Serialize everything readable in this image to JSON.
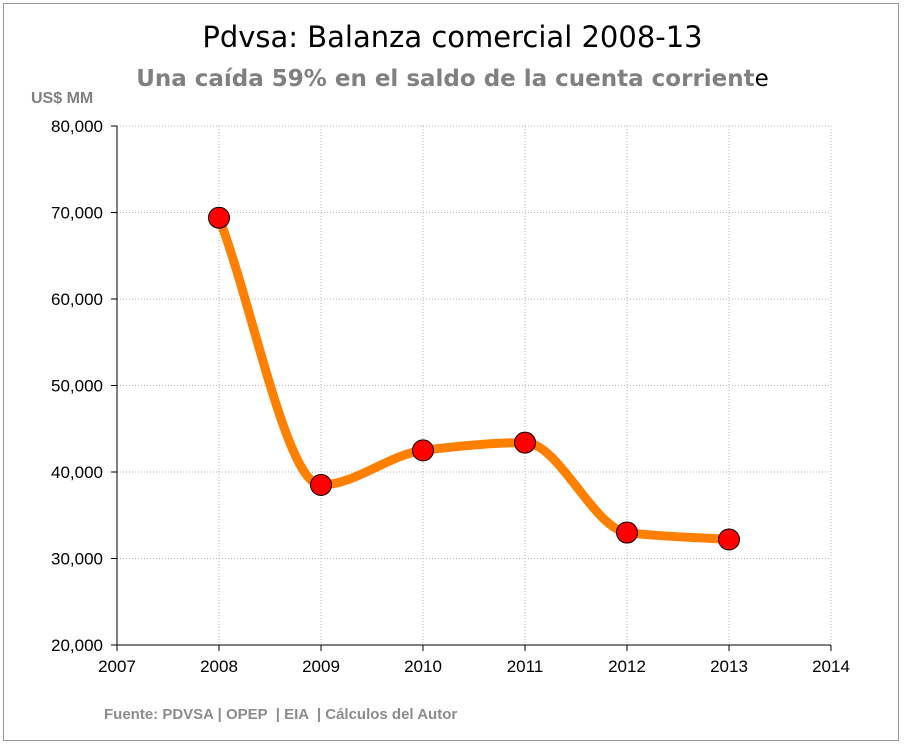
{
  "chart_data": {
    "type": "line",
    "title": "Pdvsa: Balanza comercial 2008-13",
    "subtitle_main": "Una caída 59% en el saldo de la cuenta corrient",
    "subtitle_tail": "e",
    "ylabel": "US$ MM",
    "xlabel": "",
    "source": "Fuente: PDVSA | OPEP  | EIA  | Cálculos del Autor",
    "xlim": [
      2007,
      2014
    ],
    "ylim": [
      20000,
      80000
    ],
    "x_ticks": [
      "2007",
      "2008",
      "2009",
      "2010",
      "2011",
      "2012",
      "2013",
      "2014"
    ],
    "y_ticks": [
      "20,000",
      "30,000",
      "40,000",
      "50,000",
      "60,000",
      "70,000",
      "80,000"
    ],
    "grid": true,
    "smooth": true,
    "series": [
      {
        "x": [
          2008,
          2009,
          2010,
          2011,
          2012,
          2013
        ],
        "y": [
          69400,
          38500,
          42500,
          43400,
          33000,
          32200
        ],
        "line_color": "#ff7f00",
        "marker_color": "#ff0000"
      }
    ]
  }
}
